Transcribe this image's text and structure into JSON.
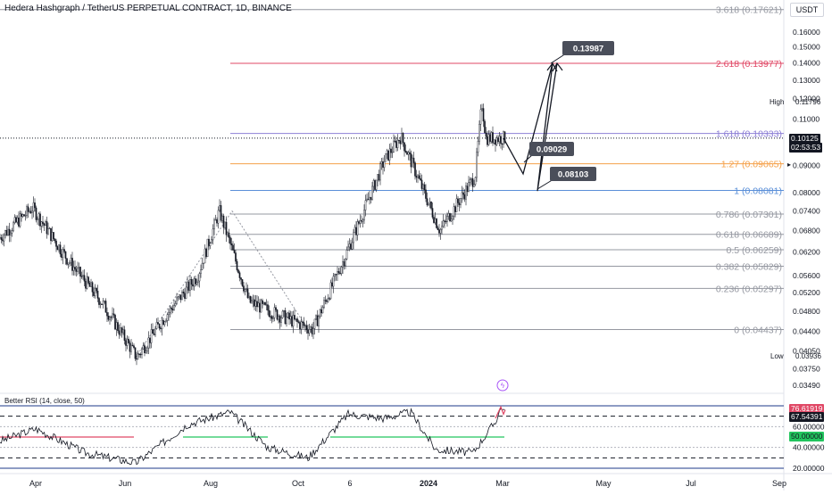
{
  "header": {
    "symbol": "Hedera Hashgraph / TetherUS PERPETUAL CONTRACT, 1D, BINANCE",
    "currency": "USDT"
  },
  "price_axis": {
    "ticks": [
      "0.16000",
      "0.15000",
      "0.14000",
      "0.13000",
      "0.12000",
      "0.11000",
      "0.09000",
      "0.08000",
      "0.07400",
      "0.06800",
      "0.06200",
      "0.05600",
      "0.05200",
      "0.04800",
      "0.04400",
      "0.04050",
      "0.03750",
      "0.03490"
    ],
    "high_label": "High",
    "high_value": "0.11796",
    "low_label": "Low",
    "low_value": "0.03936",
    "last_price": "0.10125",
    "countdown": "02:53:53"
  },
  "fib_levels": [
    {
      "ratio": "3.618",
      "label": "3.618 (0.17621)",
      "value": 0.17621,
      "color": "#9598a1"
    },
    {
      "ratio": "2.618",
      "label": "2.618 (0.13977)",
      "value": 0.13977,
      "color": "#e04866"
    },
    {
      "ratio": "1.618",
      "label": "1.618 (0.10333)",
      "value": 0.10333,
      "color": "#8d7fd6"
    },
    {
      "ratio": "1.27",
      "label": "1.27 (0.09065)",
      "value": 0.09065,
      "color": "#f5a14a"
    },
    {
      "ratio": "1",
      "label": "1 (0.08081)",
      "value": 0.08081,
      "color": "#5a8fd8"
    },
    {
      "ratio": "0.786",
      "label": "0.786 (0.07301)",
      "value": 0.07301,
      "color": "#9598a1"
    },
    {
      "ratio": "0.618",
      "label": "0.618 (0.06689)",
      "value": 0.06689,
      "color": "#9598a1"
    },
    {
      "ratio": "0.5",
      "label": "0.5 (0.06259)",
      "value": 0.06259,
      "color": "#9598a1"
    },
    {
      "ratio": "0.382",
      "label": "0.382 (0.05829)",
      "value": 0.05829,
      "color": "#9598a1"
    },
    {
      "ratio": "0.236",
      "label": "0.236 (0.05297)",
      "value": 0.05297,
      "color": "#9598a1"
    },
    {
      "ratio": "0",
      "label": "0 (0.04437)",
      "value": 0.04437,
      "color": "#9598a1"
    }
  ],
  "callouts": [
    "0.13987",
    "0.09029",
    "0.08103"
  ],
  "rsi": {
    "title": "Better RSI (14, close, 50)",
    "ticks": [
      "60.00000",
      "40.00000",
      "20.00000"
    ],
    "value": "76.61919",
    "ma": "67.54391",
    "mid": "50.00000"
  },
  "time_axis": [
    "Apr",
    "Jun",
    "Aug",
    "Oct",
    "6",
    "2024",
    "Mar",
    "May",
    "Jul",
    "Sep"
  ],
  "colors": {
    "up": "#131722",
    "down": "#131722",
    "rsi": "#131722",
    "rsi_hot": "#e04866",
    "rsi_cross": "#22c55e",
    "axis_text": "#131722"
  },
  "chart_data": {
    "type": "candlestick",
    "title": "Hedera Hashgraph / TetherUS PERPETUAL CONTRACT, 1D, BINANCE",
    "y_scale": "log",
    "high": 0.11796,
    "low": 0.03936,
    "last": 0.10125,
    "swings": [
      {
        "date": "2023-03-01",
        "value": 0.066
      },
      {
        "date": "2023-03-25",
        "value": 0.075
      },
      {
        "date": "2023-04-20",
        "value": 0.06
      },
      {
        "date": "2023-05-15",
        "value": 0.05
      },
      {
        "date": "2023-06-10",
        "value": 0.03936
      },
      {
        "date": "2023-07-01",
        "value": 0.047
      },
      {
        "date": "2023-07-25",
        "value": 0.056
      },
      {
        "date": "2023-08-10",
        "value": 0.074
      },
      {
        "date": "2023-09-01",
        "value": 0.05
      },
      {
        "date": "2023-10-18",
        "value": 0.04437
      },
      {
        "date": "2023-11-10",
        "value": 0.06
      },
      {
        "date": "2023-12-10",
        "value": 0.092
      },
      {
        "date": "2023-12-22",
        "value": 0.102
      },
      {
        "date": "2024-01-20",
        "value": 0.068
      },
      {
        "date": "2024-02-15",
        "value": 0.086
      },
      {
        "date": "2024-02-20",
        "value": 0.11796
      },
      {
        "date": "2024-02-23",
        "value": 0.10125
      }
    ],
    "projection": [
      {
        "date": "2024-02-23",
        "value": 0.10125
      },
      {
        "date": "2024-03-05",
        "value": 0.09029
      },
      {
        "date": "2024-03-23",
        "value": 0.13987
      },
      {
        "date": "2024-03-15",
        "value": 0.08103
      },
      {
        "date": "2024-03-23",
        "value": 0.13987
      }
    ],
    "rsi": {
      "name": "Better RSI (14, close, 50)",
      "last": 76.61919,
      "ma": 67.54391,
      "levels": [
        70,
        50,
        30
      ],
      "range": [
        20,
        80
      ]
    }
  }
}
